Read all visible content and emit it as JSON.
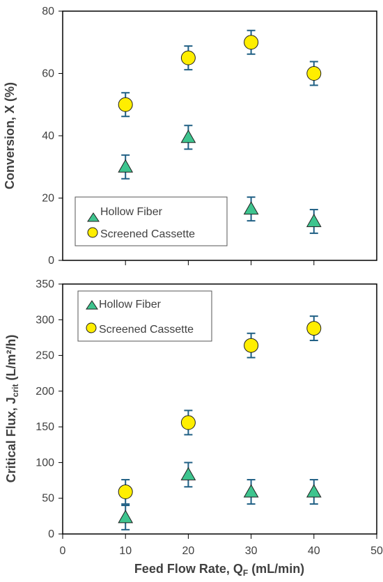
{
  "chart_data": [
    {
      "type": "scatter",
      "title": "",
      "xlabel": "",
      "ylabel": "Conversion, X (%)",
      "xlim": [
        0,
        50
      ],
      "ylim": [
        0,
        80
      ],
      "x_ticks": [
        10,
        20,
        30,
        40
      ],
      "x_tick_labels_shown": false,
      "y_ticks": [
        0,
        20,
        40,
        60,
        80
      ],
      "grid": false,
      "legend_position": "bottom-left",
      "series": [
        {
          "name": "Hollow Fiber",
          "marker": "triangle",
          "color": "#3ec48e",
          "x": [
            10,
            20,
            30,
            40
          ],
          "y": [
            30,
            39.5,
            16.5,
            12.5
          ],
          "error": [
            3.8,
            3.8,
            3.8,
            3.8
          ]
        },
        {
          "name": "Screened Cassette",
          "marker": "circle",
          "color": "#ffee00",
          "x": [
            10,
            20,
            30,
            40
          ],
          "y": [
            50,
            65,
            70,
            60
          ],
          "error": [
            3.8,
            3.8,
            3.8,
            3.8
          ]
        }
      ]
    },
    {
      "type": "scatter",
      "title": "",
      "xlabel": "Feed Flow Rate, Q",
      "xlabel_sub": "F",
      "xlabel_units": " (mL/min)",
      "ylabel": "Critical Flux, J",
      "ylabel_sub": "crit",
      "ylabel_units": " (L/m²/h)",
      "xlim": [
        0,
        50
      ],
      "ylim": [
        0,
        350
      ],
      "x_ticks": [
        0,
        10,
        20,
        30,
        40,
        50
      ],
      "y_ticks": [
        0,
        50,
        100,
        150,
        200,
        250,
        300,
        350
      ],
      "grid": false,
      "legend_position": "top-left",
      "series": [
        {
          "name": "Hollow Fiber",
          "marker": "triangle",
          "color": "#3ec48e",
          "x": [
            10,
            20,
            30,
            40
          ],
          "y": [
            23,
            83,
            59,
            59
          ],
          "error": [
            17,
            17,
            17,
            17
          ]
        },
        {
          "name": "Screened Cassette",
          "marker": "circle",
          "color": "#ffee00",
          "x": [
            10,
            20,
            30,
            40
          ],
          "y": [
            59,
            156,
            264,
            288
          ],
          "error": [
            17,
            17,
            17,
            17
          ]
        }
      ]
    }
  ],
  "colors": {
    "axis": "#000000",
    "text": "#404040",
    "error_bar": "#1f5f84",
    "marker_edge": "#1e1e1e"
  }
}
